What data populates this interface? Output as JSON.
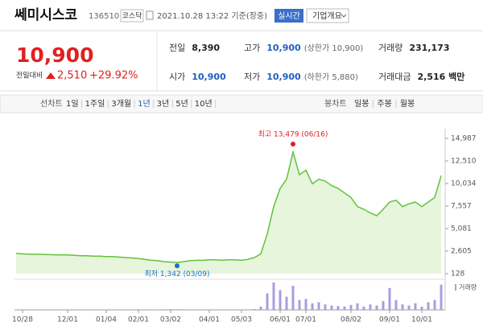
{
  "header": {
    "name": "쎄미시스코",
    "code": "136510",
    "market": "코스닥",
    "datetime": "2021.10.28 13:22 기준(장중)",
    "realtime": "실시간",
    "company_info": "기업개요"
  },
  "price": {
    "current": "10,900",
    "change_label": "전일대비",
    "change": "2,510",
    "change_pct": "+29.92%"
  },
  "stats": [
    {
      "label": "전일",
      "value": "8,390"
    },
    {
      "label": "고가",
      "value": "10,900",
      "note": "(상한가 10,900)"
    },
    {
      "label": "거래량",
      "value": "231,173"
    },
    {
      "label": "시가",
      "value": "10,900"
    },
    {
      "label": "저가",
      "value": "10,900",
      "note": "(하한가 5,880)"
    },
    {
      "label": "거래대금",
      "value": "2,516 백만"
    }
  ],
  "tabs": {
    "line_chart": "선차트",
    "periods": [
      "1일",
      "1주일",
      "3개월",
      "1년",
      "3년",
      "5년",
      "10년"
    ],
    "selected_period": 3,
    "candle_chart": "봉차트",
    "candles": [
      "일봉",
      "주봉",
      "월봉"
    ]
  },
  "chart_data": {
    "type": "line",
    "color": "#62c23a",
    "fill": "#e6f5dc",
    "categories": [
      null,
      "10/28",
      null,
      null,
      null,
      null,
      null,
      null,
      "12/01",
      null,
      null,
      null,
      null,
      null,
      "01/04",
      null,
      null,
      null,
      null,
      "02/01",
      null,
      null,
      null,
      null,
      "03/02",
      null,
      null,
      null,
      null,
      null,
      "04/01",
      null,
      null,
      null,
      null,
      "05/03",
      null,
      null,
      null,
      null,
      null,
      "06/01",
      null,
      null,
      null,
      "07/01",
      null,
      null,
      null,
      null,
      null,
      null,
      "08/02",
      null,
      null,
      null,
      null,
      null,
      "09/01",
      null,
      null,
      null,
      null,
      "10/01",
      null,
      null,
      null
    ],
    "values": [
      2350,
      2300,
      2280,
      2250,
      2250,
      2230,
      2200,
      2200,
      2180,
      2150,
      2100,
      2100,
      2050,
      2050,
      2000,
      2000,
      1950,
      1900,
      1850,
      1800,
      1700,
      1600,
      1550,
      1450,
      1400,
      1342,
      1450,
      1550,
      1600,
      1600,
      1650,
      1650,
      1600,
      1650,
      1650,
      1600,
      1700,
      1900,
      2300,
      4500,
      7500,
      9500,
      10500,
      13479,
      11000,
      11500,
      10000,
      10500,
      10300,
      9800,
      9500,
      9000,
      8500,
      7500,
      7200,
      6800,
      6500,
      7200,
      8000,
      8200,
      7500,
      7800,
      8000,
      7500,
      8000,
      8500,
      10900
    ],
    "volume_label": "거래량",
    "volume_color": "#a99de0",
    "volume": [
      30000,
      25000,
      20000,
      30000,
      25000,
      20000,
      30000,
      25000,
      40000,
      30000,
      25000,
      20000,
      30000,
      35000,
      40000,
      30000,
      25000,
      30000,
      40000,
      50000,
      40000,
      30000,
      35000,
      45000,
      60000,
      50000,
      40000,
      30000,
      35000,
      30000,
      25000,
      30000,
      25000,
      30000,
      35000,
      30000,
      40000,
      80000,
      300000,
      1500000,
      2500000,
      1800000,
      1200000,
      2200000,
      900000,
      1000000,
      600000,
      700000,
      500000,
      400000,
      350000,
      300000,
      450000,
      600000,
      300000,
      500000,
      400000,
      800000,
      2000000,
      900000,
      500000,
      400000,
      600000,
      300000,
      700000,
      900000,
      2300000
    ],
    "ylim": [
      128,
      14987
    ],
    "yticks": [
      {
        "value": 14987,
        "label": "14,987"
      },
      {
        "value": 12510,
        "label": "12,510"
      },
      {
        "value": 10034,
        "label": "10,034"
      },
      {
        "value": 7557,
        "label": "7,557"
      },
      {
        "value": 5081,
        "label": "5,081"
      },
      {
        "value": 2605,
        "label": "2,605"
      },
      128
    ],
    "annotations": {
      "high": "최고 13,479 (06/16)",
      "low": "최저 1,342 (03/09)"
    }
  }
}
